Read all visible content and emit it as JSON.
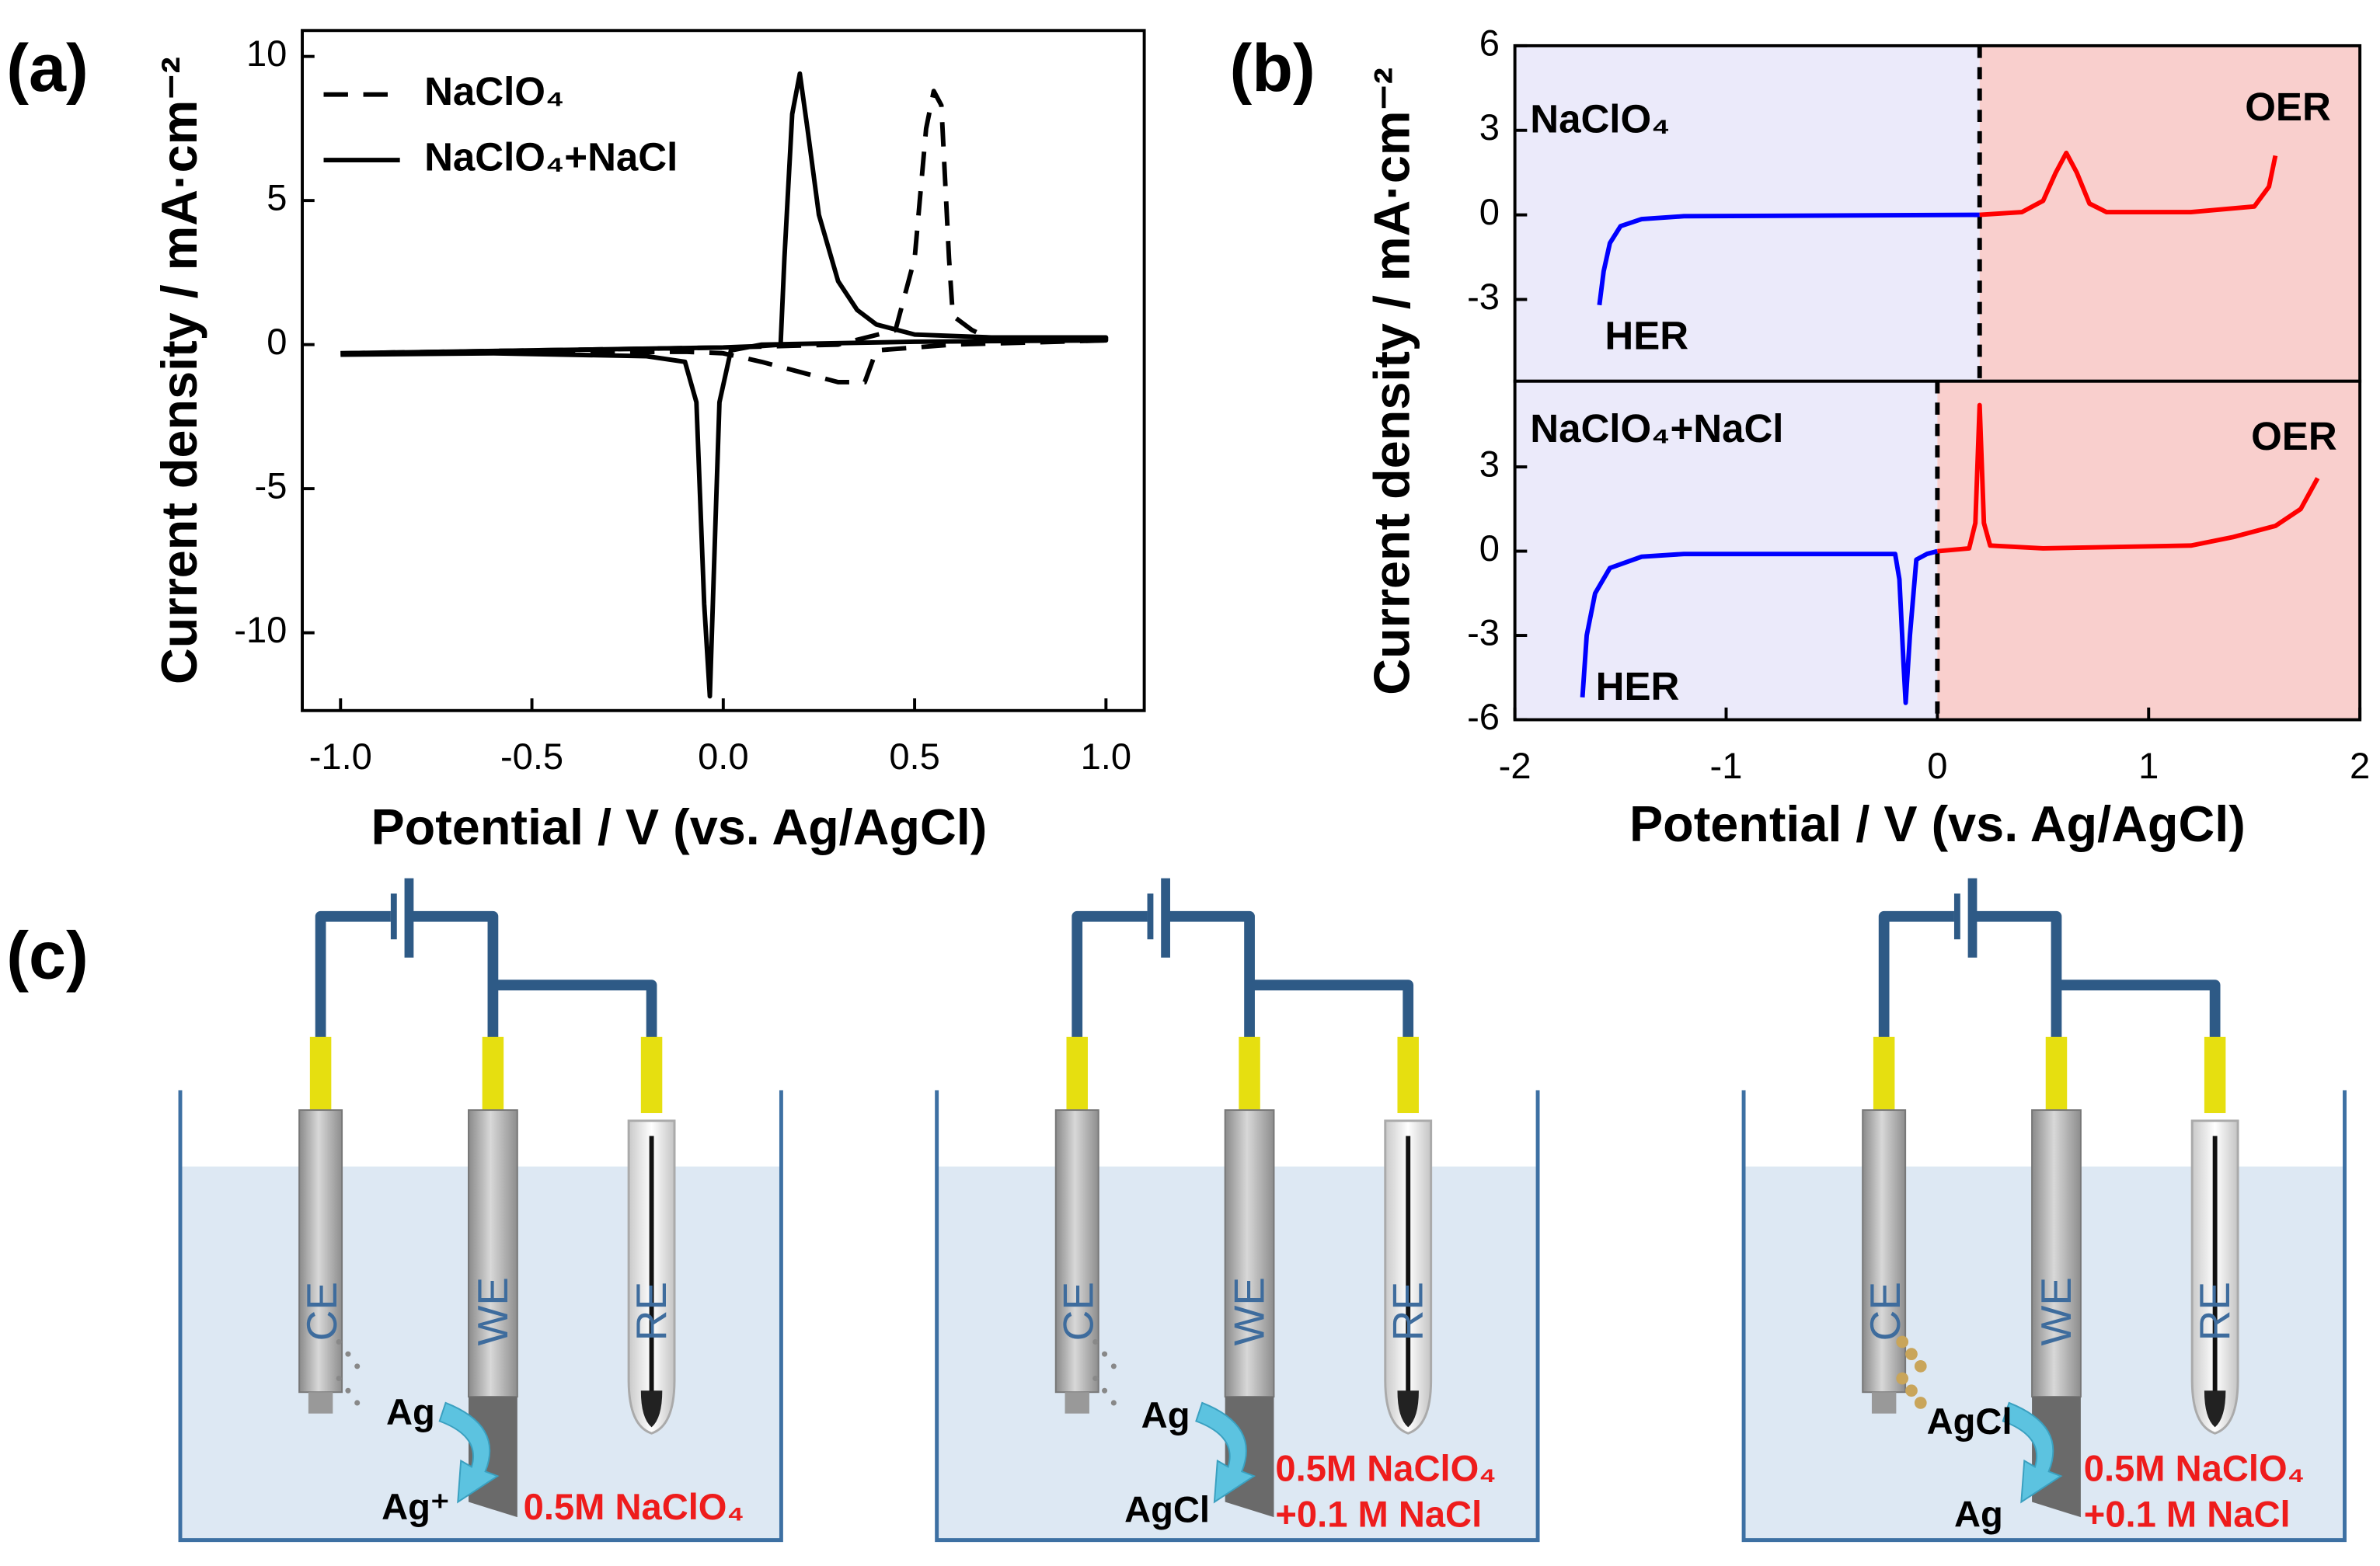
{
  "chart_data": [
    {
      "type": "line",
      "panel_label": "(a)",
      "xlabel": "Potential / V (vs. Ag/AgCl)",
      "ylabel": "Current density / mA·cm⁻²",
      "xlim": [
        -1.1,
        1.1
      ],
      "ylim": [
        -12.7,
        10.9
      ],
      "xticks": [
        {
          "value": -1,
          "label": "-1.0"
        },
        -0.5,
        {
          "value": 0,
          "label": "0.0"
        },
        0.5,
        {
          "value": 1,
          "label": "1.0"
        }
      ],
      "yticks": [
        -10,
        -5,
        0,
        5,
        10
      ],
      "legend": "upper left",
      "series": [
        {
          "name": "NaClO₄",
          "color": "#000000",
          "style": "dashed",
          "x": [
            -1.0,
            0.0,
            0.3,
            0.45,
            0.5,
            0.53,
            0.55,
            0.57,
            0.59,
            0.6,
            0.65,
            0.7,
            1.0,
            1.0,
            0.6,
            0.4,
            0.37,
            0.3,
            0.1,
            0.0,
            -0.1,
            -1.0
          ],
          "values": [
            -0.3,
            -0.1,
            0.0,
            0.5,
            3,
            7.5,
            8.8,
            8.3,
            3,
            1,
            0.5,
            0.2,
            0.2,
            0.15,
            0.0,
            -0.2,
            -1.3,
            -1.3,
            -0.6,
            -0.3,
            -0.25,
            -0.3
          ]
        },
        {
          "name": "NaClO₄+NaCl",
          "color": "#000000",
          "style": "solid",
          "x": [
            -1.0,
            -0.5,
            0.0,
            0.1,
            0.15,
            0.16,
            0.18,
            0.2,
            0.22,
            0.25,
            0.3,
            0.35,
            0.4,
            0.5,
            0.7,
            1.0,
            1.0,
            0.5,
            0.1,
            0.02,
            -0.01,
            -0.02,
            -0.035,
            -0.05,
            -0.07,
            -0.1,
            -0.2,
            -0.6,
            -1.0
          ],
          "values": [
            -0.3,
            -0.2,
            -0.1,
            -0.05,
            0.0,
            3,
            8,
            9.4,
            7.5,
            4.5,
            2.2,
            1.2,
            0.7,
            0.35,
            0.25,
            0.25,
            0.15,
            0.1,
            0.0,
            -0.2,
            -2,
            -6,
            -12.2,
            -9,
            -2,
            -0.6,
            -0.4,
            -0.3,
            -0.35
          ]
        }
      ]
    },
    {
      "type": "line",
      "panel_label": "(b)",
      "xlim": [
        -2,
        2
      ],
      "ylim": [
        -5.9,
        6
      ],
      "yticks": [
        -3,
        0,
        3,
        6
      ],
      "divider": 0.2,
      "region_colors": [
        "#ebeafa",
        "#f9cfcd"
      ],
      "annotations": [
        "NaClO₄",
        "OER",
        "HER"
      ],
      "series": [
        {
          "color": "#0000ff",
          "x": [
            -1.6,
            -1.58,
            -1.55,
            -1.5,
            -1.4,
            -1.2,
            0.2
          ],
          "values": [
            -3.2,
            -2,
            -1,
            -0.4,
            -0.15,
            -0.05,
            0
          ]
        },
        {
          "color": "#ff0000",
          "x": [
            0.2,
            0.4,
            0.5,
            0.56,
            0.61,
            0.66,
            0.72,
            0.8,
            1.2,
            1.5,
            1.57,
            1.6
          ],
          "values": [
            0,
            0.1,
            0.5,
            1.5,
            2.2,
            1.5,
            0.4,
            0.1,
            0.1,
            0.3,
            1,
            2.1
          ]
        }
      ]
    },
    {
      "type": "line",
      "xlabel": "Potential / V (vs. Ag/AgCl)",
      "ylabel": "Current density / mA·cm⁻²",
      "xlim": [
        -2,
        2
      ],
      "ylim": [
        -6,
        6.05
      ],
      "xticks": [
        -2,
        -1,
        0,
        1,
        2
      ],
      "yticks": [
        -6,
        -3,
        0,
        3
      ],
      "divider": 0,
      "region_colors": [
        "#ebeafa",
        "#f9cfcd"
      ],
      "annotations": [
        "NaClO₄+NaCl",
        "OER",
        "HER"
      ],
      "series": [
        {
          "color": "#0000ff",
          "x": [
            -1.68,
            -1.66,
            -1.62,
            -1.55,
            -1.4,
            -1.2,
            -0.2,
            -0.18,
            -0.16,
            -0.15,
            -0.13,
            -0.1,
            -0.05,
            0
          ],
          "values": [
            -5.2,
            -3,
            -1.5,
            -0.6,
            -0.2,
            -0.1,
            -0.1,
            -1,
            -4,
            -5.4,
            -3,
            -0.3,
            -0.1,
            0
          ]
        },
        {
          "color": "#ff0000",
          "x": [
            0,
            0.15,
            0.18,
            0.2,
            0.22,
            0.25,
            0.5,
            1.2,
            1.4,
            1.6,
            1.72,
            1.8
          ],
          "values": [
            0,
            0.1,
            1,
            5.2,
            1,
            0.2,
            0.1,
            0.2,
            0.5,
            0.9,
            1.5,
            2.6
          ]
        }
      ]
    }
  ],
  "diagram": {
    "panel_label": "(c)",
    "cells": [
      {
        "electrodes": [
          "CE",
          "WE",
          "RE"
        ],
        "species_top": "Ag",
        "species_bottom": "Ag⁺",
        "solution": [
          "0.5M NaClO₄"
        ]
      },
      {
        "electrodes": [
          "CE",
          "WE",
          "RE"
        ],
        "species_top": "Ag",
        "species_bottom": "AgCl",
        "solution": [
          "0.5M NaClO₄",
          "+0.1 M NaCl"
        ]
      },
      {
        "electrodes": [
          "CE",
          "WE",
          "RE"
        ],
        "species_top": "AgCl",
        "species_bottom": "Ag",
        "solution": [
          "0.5M NaClO₄",
          "+0.1 M NaCl"
        ]
      }
    ]
  }
}
